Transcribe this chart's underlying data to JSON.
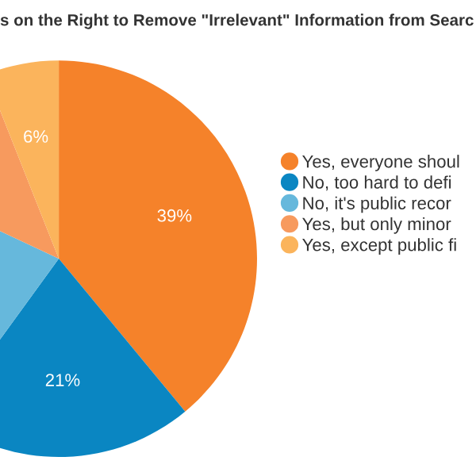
{
  "chart_data": {
    "type": "pie",
    "title": "s on the Right to Remove \"Irrelevant\" Information from Searc",
    "categories": [
      "Yes, everyone shoul",
      "No, too hard to defi",
      "No, it's public recor",
      "Yes, but only minor",
      "Yes, except public fi"
    ],
    "values": [
      39,
      21,
      22,
      12,
      6
    ],
    "colors": [
      "#f5822a",
      "#0a86c2",
      "#66b8dc",
      "#f79a5e",
      "#fbb45c"
    ],
    "value_labels": [
      "39%",
      "21%",
      null,
      null,
      "6%"
    ],
    "legend": "right"
  }
}
